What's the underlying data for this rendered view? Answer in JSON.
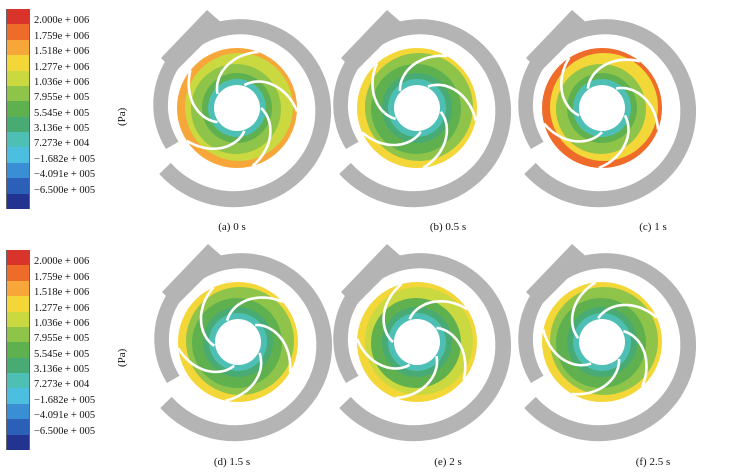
{
  "legends": [
    {
      "unit": "(Pa)",
      "colors": [
        "#d8342b",
        "#ef6b2a",
        "#f7a63a",
        "#f3d638",
        "#c9d93f",
        "#8ec44a",
        "#5fb14f",
        "#48ab73",
        "#4dbfb4",
        "#4cbfe0",
        "#3a8fd4",
        "#2c5fb8",
        "#22348f"
      ],
      "labels": [
        "2.000e + 006",
        "1.759e + 006",
        "1.518e + 006",
        "1.277e + 006",
        "1.036e + 006",
        "7.955e + 005",
        "5.545e + 005",
        "3.136e + 005",
        "7.273e + 004",
        "−1.682e + 005",
        "−4.091e + 005",
        "−6.500e + 005"
      ]
    },
    {
      "unit": "(Pa)",
      "colors": [
        "#d8342b",
        "#ef6b2a",
        "#f7a63a",
        "#f3d638",
        "#c9d93f",
        "#8ec44a",
        "#5fb14f",
        "#48ab73",
        "#4dbfb4",
        "#4cbfe0",
        "#3a8fd4",
        "#2c5fb8",
        "#22348f"
      ],
      "labels": [
        "2.000e + 006",
        "1.759e + 006",
        "1.518e + 006",
        "1.277e + 006",
        "1.036e + 006",
        "7.955e + 005",
        "5.545e + 005",
        "3.136e + 005",
        "7.273e + 004",
        "−1.682e + 005",
        "−4.091e + 005",
        "−6.500e + 005"
      ]
    }
  ],
  "panels": [
    {
      "caption": "(a)  0 s",
      "outer": "#f7a63a",
      "mid": "#c9d93f",
      "inner": "#8ec44a",
      "core": "#5fb14f",
      "hub": "#4dbfb4"
    },
    {
      "caption": "(b)  0.5 s",
      "outer": "#f3d638",
      "mid": "#8ec44a",
      "inner": "#5fb14f",
      "core": "#48ab73",
      "hub": "#4dbfb4"
    },
    {
      "caption": "(c)  1 s",
      "outer": "#ef6b2a",
      "mid": "#f3d638",
      "inner": "#8ec44a",
      "core": "#5fb14f",
      "hub": "#4dbfb4"
    },
    {
      "caption": "(d)  1.5 s",
      "outer": "#f3d638",
      "mid": "#8ec44a",
      "inner": "#5fb14f",
      "core": "#48ab73",
      "hub": "#4dbfb4"
    },
    {
      "caption": "(e)  2 s",
      "outer": "#f3d638",
      "mid": "#c9d93f",
      "inner": "#5fb14f",
      "core": "#48ab73",
      "hub": "#4dbfb4"
    },
    {
      "caption": "(f)  2.5 s",
      "outer": "#f3d638",
      "mid": "#8ec44a",
      "inner": "#5fb14f",
      "core": "#48ab73",
      "hub": "#4dbfb4"
    }
  ]
}
